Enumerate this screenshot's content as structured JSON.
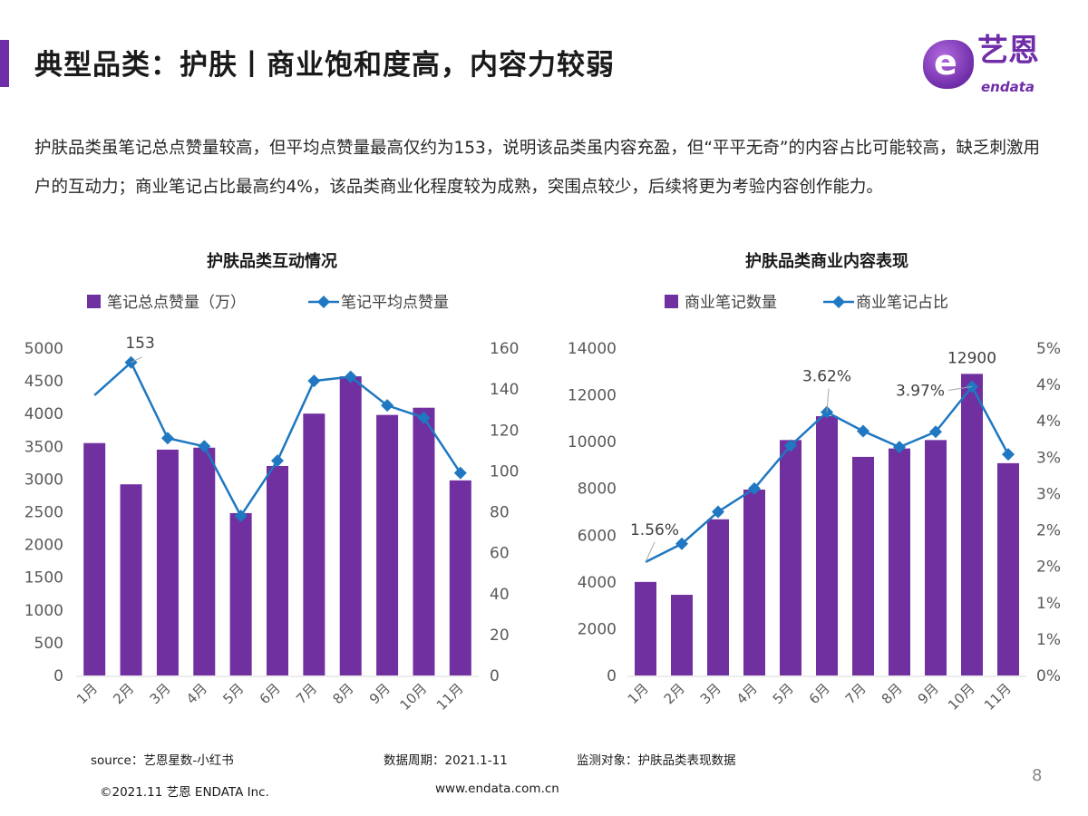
{
  "header": {
    "title": "典型品类：护肤丨商业饱和度高，内容力较弱",
    "logo": {
      "cn": "艺恩",
      "en": "endata",
      "mark": "e"
    }
  },
  "summary": "护肤品类虽笔记总点赞量较高，但平均点赞量最高仅约为153，说明该品类虽内容充盈，但“平平无奇”的内容占比可能较高，缺乏刺激用户的互动力；商业笔记占比最高约4%，该品类商业化程度较为成熟，突围点较少，后续将更为考验内容创作能力。",
  "colors": {
    "bar": "#7030a0",
    "line": "#1f78c1",
    "accent": "#6f2da8",
    "axis_text": "#595959"
  },
  "chart_data": [
    {
      "type": "bar+line",
      "title": "护肤品类互动情况",
      "categories": [
        "1月",
        "2月",
        "3月",
        "4月",
        "5月",
        "6月",
        "7月",
        "8月",
        "9月",
        "10月",
        "11月"
      ],
      "legend_position": "top",
      "grid": false,
      "series": [
        {
          "name": "笔记总点赞量（万）",
          "type": "bar",
          "axis": "left",
          "values": [
            3550,
            2920,
            3450,
            3480,
            2480,
            3200,
            4000,
            4570,
            3980,
            4090,
            2980
          ]
        },
        {
          "name": "笔记平均点赞量",
          "type": "line",
          "marker": "diamond",
          "axis": "right",
          "values": [
            137,
            153,
            116,
            112,
            78,
            105,
            144,
            146,
            132,
            126,
            99
          ]
        }
      ],
      "y_left": {
        "range": [
          0,
          5000
        ],
        "ticks": [
          "0",
          "500",
          "1000",
          "1500",
          "2000",
          "2500",
          "3000",
          "3500",
          "4000",
          "4500",
          "5000"
        ]
      },
      "y_right": {
        "range": [
          0,
          160
        ],
        "ticks": [
          "0",
          "20",
          "40",
          "60",
          "80",
          "100",
          "120",
          "140",
          "160"
        ]
      },
      "annotations": [
        {
          "series": 1,
          "index": 1,
          "text": "153"
        }
      ]
    },
    {
      "type": "bar+line",
      "title": "护肤品类商业内容表现",
      "categories": [
        "1月",
        "2月",
        "3月",
        "4月",
        "5月",
        "6月",
        "7月",
        "8月",
        "9月",
        "10月",
        "11月"
      ],
      "legend_position": "top",
      "grid": false,
      "series": [
        {
          "name": "商业笔记数量",
          "type": "bar",
          "axis": "left",
          "values": [
            4000,
            3450,
            6680,
            7950,
            10070,
            11090,
            9350,
            9710,
            10070,
            12900,
            9080
          ]
        },
        {
          "name": "商业笔记占比",
          "type": "line",
          "marker": "diamond",
          "axis": "right",
          "values": [
            1.56,
            1.81,
            2.25,
            2.57,
            3.16,
            3.62,
            3.36,
            3.14,
            3.35,
            3.97,
            3.04
          ]
        }
      ],
      "y_left": {
        "range": [
          0,
          14000
        ],
        "ticks": [
          "0",
          "2000",
          "4000",
          "6000",
          "8000",
          "10000",
          "12000",
          "14000"
        ]
      },
      "y_right": {
        "range": [
          0,
          4.5
        ],
        "unit": "%",
        "ticks": [
          "0%",
          "1%",
          "1%",
          "2%",
          "2%",
          "3%",
          "3%",
          "4%",
          "4%",
          "5%"
        ]
      },
      "annotations": [
        {
          "series": 1,
          "index": 0,
          "text": "1.56%"
        },
        {
          "series": 1,
          "index": 5,
          "text": "3.62%"
        },
        {
          "series": 1,
          "index": 9,
          "text": "3.97%"
        },
        {
          "series": 0,
          "index": 9,
          "text": "12900"
        }
      ]
    }
  ],
  "footer": {
    "source": "source：艺恩星数-小红书",
    "period": "数据周期：2021.1-11",
    "subject": "监测对象：护肤品类表现数据",
    "copyright": "©2021.11 艺恩 ENDATA Inc.",
    "website": "www.endata.com.cn",
    "page": "8"
  }
}
